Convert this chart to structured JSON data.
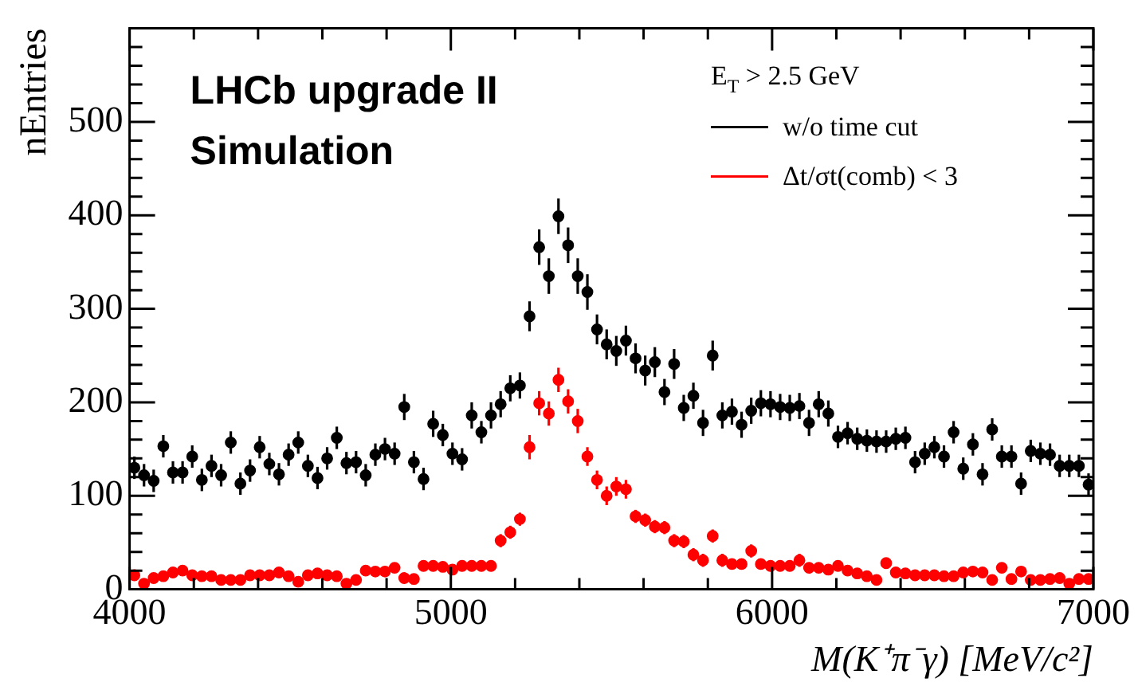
{
  "chart_data": {
    "type": "scatter",
    "xlabel": "M(K⁺π⁻γ) [MeV/c²]",
    "ylabel": "nEntries",
    "legend_title": "E$_{T}$ > 2.5 GeV",
    "legend": "top right",
    "marker": "circle",
    "annotations": [
      "LHCb upgrade II",
      "Simulation"
    ],
    "xlim": [
      4000,
      7000
    ],
    "ylim": [
      0,
      600
    ],
    "xticks": [
      4000,
      {
        "value": 4200,
        "label": null
      },
      {
        "value": 4400,
        "label": null
      },
      {
        "value": 4600,
        "label": null
      },
      {
        "value": 4800,
        "label": null
      },
      5000,
      {
        "value": 5200,
        "label": null
      },
      {
        "value": 5400,
        "label": null
      },
      {
        "value": 5600,
        "label": null
      },
      {
        "value": 5800,
        "label": null
      },
      6000,
      {
        "value": 6200,
        "label": null
      },
      {
        "value": 6400,
        "label": null
      },
      {
        "value": 6600,
        "label": null
      },
      {
        "value": 6800,
        "label": null
      },
      7000
    ],
    "yticks": [
      0,
      {
        "value": 20,
        "label": null
      },
      {
        "value": 40,
        "label": null
      },
      {
        "value": 60,
        "label": null
      },
      {
        "value": 80,
        "label": null
      },
      100,
      {
        "value": 120,
        "label": null
      },
      {
        "value": 140,
        "label": null
      },
      {
        "value": 160,
        "label": null
      },
      {
        "value": 180,
        "label": null
      },
      200,
      {
        "value": 220,
        "label": null
      },
      {
        "value": 240,
        "label": null
      },
      {
        "value": 260,
        "label": null
      },
      {
        "value": 280,
        "label": null
      },
      300,
      {
        "value": 320,
        "label": null
      },
      {
        "value": 340,
        "label": null
      },
      {
        "value": 360,
        "label": null
      },
      {
        "value": 380,
        "label": null
      },
      400,
      {
        "value": 420,
        "label": null
      },
      {
        "value": 440,
        "label": null
      },
      {
        "value": 460,
        "label": null
      },
      {
        "value": 480,
        "label": null
      },
      500,
      {
        "value": 520,
        "label": null
      },
      {
        "value": 540,
        "label": null
      },
      {
        "value": 560,
        "label": null
      },
      {
        "value": 580,
        "label": null
      }
    ],
    "x": [
      4015,
      4045,
      4075,
      4105,
      4135,
      4165,
      4195,
      4225,
      4255,
      4285,
      4315,
      4345,
      4375,
      4405,
      4435,
      4465,
      4495,
      4525,
      4555,
      4585,
      4615,
      4645,
      4675,
      4705,
      4735,
      4765,
      4795,
      4825,
      4855,
      4885,
      4915,
      4945,
      4975,
      5005,
      5035,
      5065,
      5095,
      5125,
      5155,
      5185,
      5215,
      5245,
      5275,
      5305,
      5335,
      5365,
      5395,
      5425,
      5455,
      5485,
      5515,
      5545,
      5575,
      5605,
      5635,
      5665,
      5695,
      5725,
      5755,
      5785,
      5815,
      5845,
      5875,
      5905,
      5935,
      5965,
      5995,
      6025,
      6055,
      6085,
      6115,
      6145,
      6175,
      6205,
      6235,
      6265,
      6295,
      6325,
      6355,
      6385,
      6415,
      6445,
      6475,
      6505,
      6535,
      6565,
      6595,
      6625,
      6655,
      6685,
      6715,
      6745,
      6775,
      6805,
      6835,
      6865,
      6895,
      6925,
      6955,
      6985
    ],
    "series": [
      {
        "name": "w/o time cut",
        "color": "#000000",
        "values": [
          130,
          122,
          116,
          153,
          125,
          125,
          142,
          117,
          132,
          122,
          157,
          113,
          127,
          152,
          134,
          123,
          144,
          157,
          132,
          119,
          140,
          162,
          135,
          136,
          122,
          144,
          150,
          145,
          195,
          136,
          118,
          177,
          165,
          145,
          139,
          186,
          168,
          186,
          198,
          215,
          218,
          292,
          366,
          335,
          399,
          368,
          335,
          318,
          278,
          262,
          255,
          266,
          247,
          234,
          243,
          211,
          241,
          194,
          207,
          178,
          250,
          186,
          190,
          176,
          191,
          199,
          198,
          195,
          194,
          196,
          178,
          198,
          188,
          163,
          167,
          161,
          159,
          158,
          158,
          161,
          162,
          136,
          145,
          152,
          142,
          168,
          129,
          155,
          123,
          171,
          142,
          142,
          113,
          148,
          145,
          144,
          132,
          132,
          132,
          112
        ],
        "errors": [
          12,
          12,
          12,
          12,
          12,
          12,
          12,
          12,
          12,
          12,
          12,
          12,
          12,
          12,
          12,
          12,
          12,
          12,
          12,
          12,
          12,
          12,
          12,
          12,
          12,
          12,
          12,
          12,
          14,
          12,
          12,
          14,
          12,
          12,
          12,
          14,
          12,
          14,
          14,
          14,
          14,
          16,
          19,
          19,
          19,
          19,
          19,
          19,
          16,
          16,
          16,
          16,
          16,
          16,
          16,
          14,
          16,
          14,
          14,
          14,
          16,
          14,
          14,
          14,
          14,
          14,
          14,
          14,
          14,
          14,
          14,
          14,
          14,
          12,
          12,
          12,
          12,
          12,
          12,
          12,
          12,
          12,
          12,
          12,
          12,
          12,
          12,
          12,
          12,
          12,
          12,
          12,
          12,
          12,
          12,
          12,
          12,
          12,
          12,
          12
        ]
      },
      {
        "name": "Δt/σt(comb) < 3",
        "color": "#ff0000",
        "values": [
          15,
          6,
          12,
          14,
          18,
          20,
          15,
          14,
          14,
          10,
          10,
          10,
          15,
          15,
          15,
          18,
          14,
          8,
          15,
          17,
          15,
          14,
          6,
          10,
          20,
          19,
          19,
          23,
          12,
          11,
          25,
          25,
          24,
          21,
          25,
          25,
          25,
          25,
          52,
          61,
          75,
          152,
          199,
          188,
          224,
          201,
          180,
          142,
          117,
          100,
          110,
          107,
          78,
          74,
          67,
          66,
          52,
          51,
          37,
          31,
          57,
          31,
          27,
          27,
          41,
          27,
          25,
          25,
          25,
          31,
          23,
          23,
          21,
          25,
          20,
          17,
          14,
          10,
          28,
          18,
          17,
          15,
          15,
          15,
          14,
          14,
          18,
          19,
          18,
          10,
          23,
          11,
          19,
          10,
          10,
          11,
          12,
          6,
          11,
          11
        ],
        "errors": [
          4,
          4,
          4,
          4,
          4,
          4,
          4,
          4,
          4,
          4,
          4,
          4,
          4,
          4,
          4,
          4,
          4,
          4,
          4,
          4,
          4,
          4,
          4,
          4,
          4,
          4,
          4,
          4,
          4,
          4,
          4,
          4,
          4,
          4,
          4,
          4,
          4,
          4,
          7,
          7,
          7,
          13,
          13,
          13,
          13,
          13,
          13,
          10,
          10,
          10,
          10,
          10,
          7,
          7,
          7,
          7,
          7,
          7,
          7,
          7,
          7,
          7,
          4,
          4,
          7,
          4,
          4,
          4,
          4,
          7,
          4,
          4,
          4,
          4,
          4,
          4,
          4,
          4,
          4,
          4,
          4,
          4,
          4,
          4,
          4,
          4,
          4,
          4,
          4,
          4,
          4,
          4,
          4,
          4,
          4,
          4,
          4,
          4,
          4,
          4
        ]
      }
    ]
  }
}
